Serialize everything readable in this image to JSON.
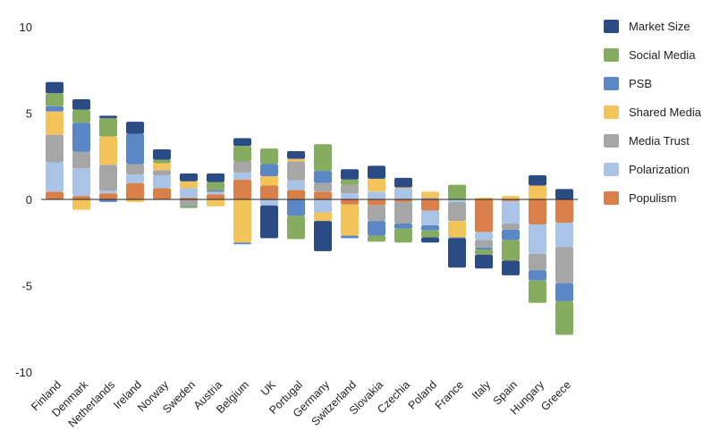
{
  "chart_data": {
    "type": "bar",
    "stacked": true,
    "title": "",
    "xlabel": "",
    "ylabel": "",
    "ylim": [
      -10,
      10
    ],
    "yticks": [
      10,
      5,
      0,
      -5,
      -10
    ],
    "grid": false,
    "legend_position": "right",
    "categories": [
      "Finland",
      "Denmark",
      "Netherlands",
      "Ireland",
      "Norway",
      "Sweden",
      "Austria",
      "Belgium",
      "UK",
      "Portugal",
      "Germany",
      "Switzerland",
      "Slovakia",
      "Czechia",
      "Poland",
      "France",
      "Italy",
      "Spain",
      "Hungary",
      "Greece"
    ],
    "series": [
      {
        "name": "Populism",
        "color": "#d9804a",
        "values": [
          0.45,
          0.2,
          0.35,
          0.95,
          0.65,
          0.1,
          0.3,
          1.15,
          0.8,
          0.55,
          0.45,
          -0.3,
          -0.35,
          -0.15,
          -0.65,
          0,
          -1.9,
          -0.1,
          -1.45,
          -1.35
        ]
      },
      {
        "name": "Polarization",
        "color": "#a9c4e6",
        "values": [
          1.7,
          1.6,
          0.15,
          0.5,
          0.75,
          0.55,
          0.1,
          0.4,
          -0.35,
          0.55,
          -0.75,
          0.35,
          0.45,
          0.65,
          -0.85,
          -0.15,
          -0.45,
          -1.3,
          -1.7,
          -1.4
        ]
      },
      {
        "name": "Media Trust",
        "color": "#a6a6a6",
        "values": [
          1.6,
          0.95,
          1.5,
          0.6,
          0.3,
          -0.35,
          0.05,
          0.65,
          0,
          1.1,
          0.5,
          0.5,
          -0.9,
          -1.25,
          0.1,
          -1.1,
          -0.45,
          -0.35,
          -0.95,
          -2.1
        ]
      },
      {
        "name": "Shared Media",
        "color": "#f2c45a",
        "values": [
          1.35,
          -0.6,
          1.65,
          -0.15,
          0.4,
          0.4,
          -0.4,
          -2.5,
          0.55,
          0.15,
          -0.5,
          -1.8,
          0.75,
          0.05,
          0.35,
          -0.95,
          0.1,
          0.2,
          0.8,
          0
        ]
      },
      {
        "name": "PSB",
        "color": "#5b87c6",
        "values": [
          0.3,
          1.7,
          -0.15,
          1.75,
          0,
          -0.05,
          0.1,
          -0.1,
          0.7,
          -0.95,
          0.7,
          -0.15,
          -0.85,
          -0.3,
          -0.3,
          -0.05,
          -0.1,
          -0.6,
          -0.6,
          -1.05
        ]
      },
      {
        "name": "Social Media",
        "color": "#86ad5f",
        "values": [
          0.75,
          0.75,
          1.05,
          0,
          0.2,
          -0.1,
          0.45,
          0.9,
          0.9,
          -1.35,
          1.55,
          0.3,
          -0.35,
          -0.8,
          -0.4,
          0.85,
          -0.3,
          -1.2,
          -1.3,
          -1.95
        ]
      },
      {
        "name": "Market Size",
        "color": "#2a4b84",
        "values": [
          0.65,
          0.6,
          0.15,
          0.7,
          0.6,
          0.45,
          0.5,
          0.45,
          -1.9,
          0.45,
          -1.75,
          0.6,
          0.75,
          0.55,
          -0.3,
          -1.7,
          -0.8,
          -0.85,
          0.6,
          0.6
        ]
      }
    ],
    "legend_order": [
      "Market Size",
      "Social Media",
      "PSB",
      "Shared Media",
      "Media Trust",
      "Polarization",
      "Populism"
    ]
  }
}
